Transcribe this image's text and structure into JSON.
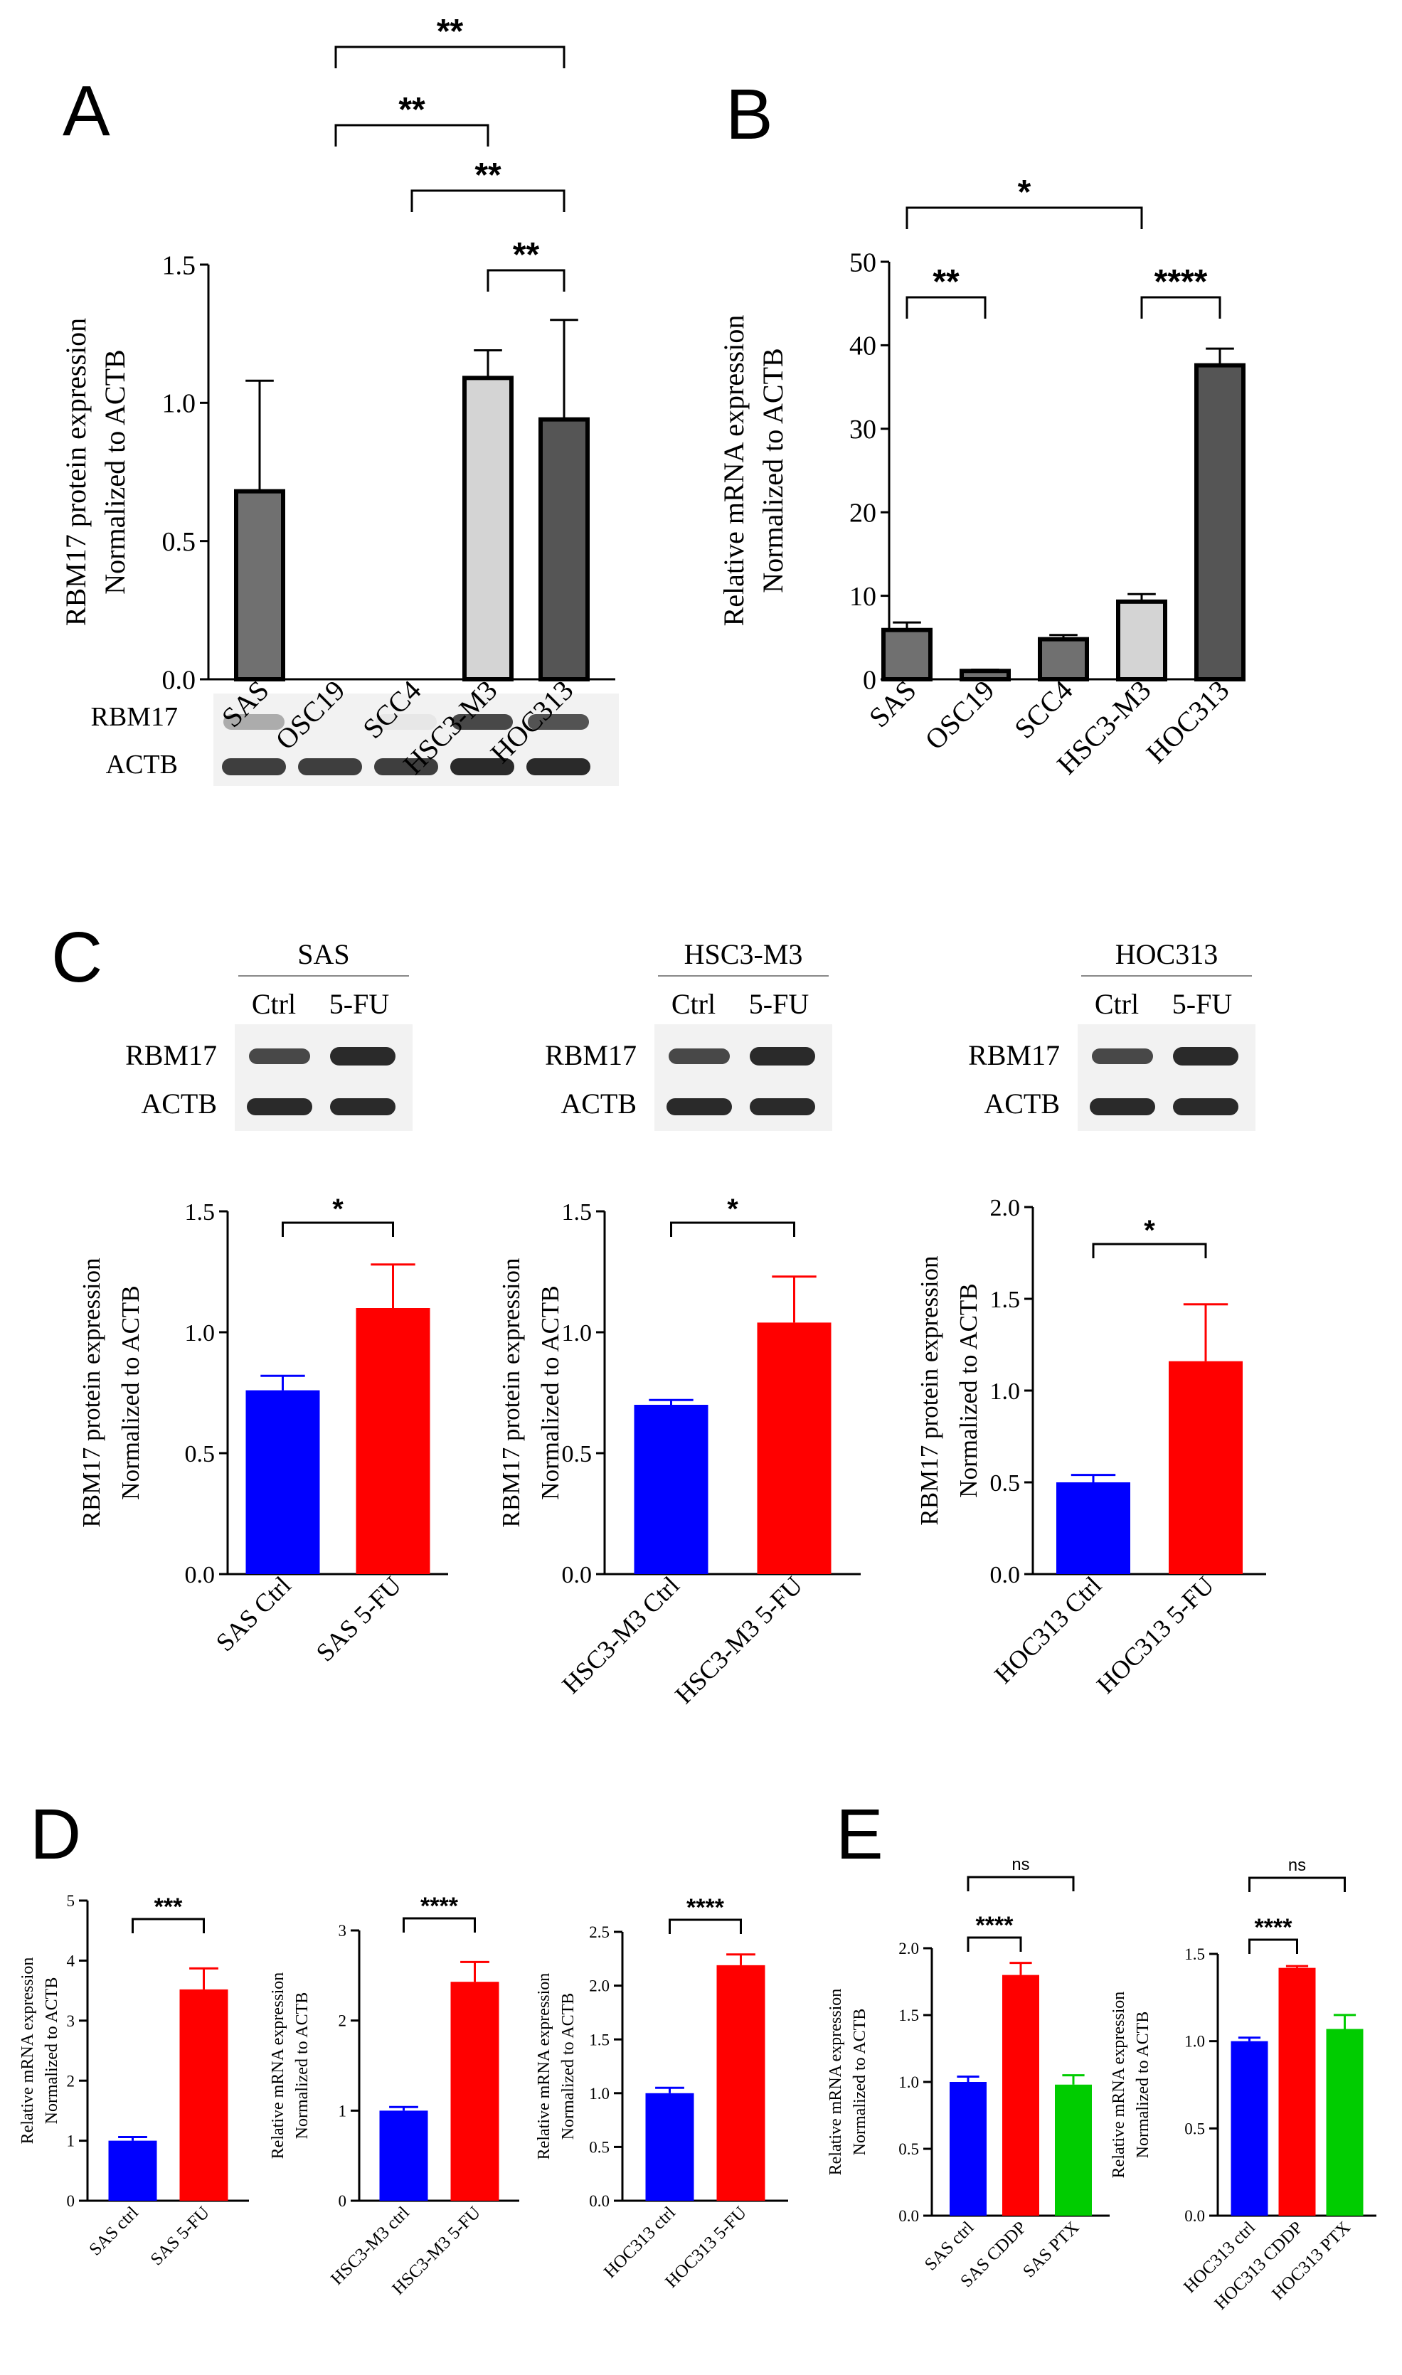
{
  "figure": {
    "panel_letters": [
      "A",
      "B",
      "C",
      "D",
      "E"
    ],
    "colors": {
      "black": "#000000",
      "blue": "#0000ff",
      "red": "#ff0000",
      "green": "#00cc00",
      "grey_mid": "#707070",
      "grey_light": "#d4d4d4",
      "grey_dark": "#555555",
      "blot_bg": "#f2f2f2",
      "band": "#2a2a2a"
    },
    "blots": {
      "A": {
        "rows": [
          "RBM17",
          "ACTB"
        ]
      },
      "C": [
        {
          "title": "SAS",
          "lanes": [
            "Ctrl",
            "5-FU"
          ],
          "rows": [
            "RBM17",
            "ACTB"
          ]
        },
        {
          "title": "HSC3-M3",
          "lanes": [
            "Ctrl",
            "5-FU"
          ],
          "rows": [
            "RBM17",
            "ACTB"
          ]
        },
        {
          "title": "HOC313",
          "lanes": [
            "Ctrl",
            "5-FU"
          ],
          "rows": [
            "RBM17",
            "ACTB"
          ]
        }
      ]
    }
  },
  "chart_data": [
    {
      "panel": "A",
      "type": "bar",
      "categories": [
        "SAS",
        "OSC19",
        "SCC4",
        "HSC3-M3",
        "HOC313"
      ],
      "values": [
        0.68,
        0,
        0,
        1.09,
        0.94
      ],
      "errors": [
        0.4,
        0,
        0,
        0.1,
        0.36
      ],
      "bar_colors": [
        "grey_mid",
        "grey_mid",
        "grey_mid",
        "grey_light",
        "grey_dark"
      ],
      "outlined": true,
      "ylim": [
        0,
        1.5
      ],
      "yticks": [
        "0.0",
        "0.5",
        "1.0",
        "1.5"
      ],
      "ylabel": [
        "RBM17 protein expression",
        "Normalized to ACTB"
      ],
      "significance": [
        {
          "from": 3,
          "to": 4,
          "label": "**"
        },
        {
          "from": 1,
          "to": 3,
          "label": "**"
        },
        {
          "from": 2,
          "to": 4,
          "label": "**"
        },
        {
          "from": 1,
          "to": 4,
          "label": "**"
        }
      ]
    },
    {
      "panel": "B",
      "type": "bar",
      "categories": [
        "SAS",
        "OSC19",
        "SCC4",
        "HSC3-M3",
        "HOC313"
      ],
      "values": [
        5.9,
        1.0,
        4.8,
        9.3,
        37.6
      ],
      "errors": [
        0.9,
        0.15,
        0.5,
        0.9,
        2.0
      ],
      "bar_colors": [
        "grey_mid",
        "grey_mid",
        "grey_mid",
        "grey_light",
        "grey_dark"
      ],
      "outlined": true,
      "ylim": [
        0,
        50
      ],
      "yticks": [
        "0",
        "10",
        "20",
        "30",
        "40",
        "50"
      ],
      "ylabel": [
        "Relative mRNA expression",
        "Normalized to ACTB"
      ],
      "significance": [
        {
          "from": 0,
          "to": 1,
          "label": "**"
        },
        {
          "from": 3,
          "to": 4,
          "label": "****"
        },
        {
          "from": 0,
          "to": 3,
          "label": "*"
        }
      ]
    },
    {
      "panel": "C1",
      "type": "bar",
      "categories": [
        "SAS Ctrl",
        "SAS 5-FU"
      ],
      "values": [
        0.76,
        1.1
      ],
      "errors": [
        0.06,
        0.18
      ],
      "bar_colors": [
        "blue",
        "red"
      ],
      "ylim": [
        0,
        1.5
      ],
      "yticks": [
        "0.0",
        "0.5",
        "1.0",
        "1.5"
      ],
      "ylabel": [
        "RBM17 protein expression",
        "Normalized to ACTB"
      ],
      "significance": [
        {
          "from": 0,
          "to": 1,
          "label": "*"
        }
      ]
    },
    {
      "panel": "C2",
      "type": "bar",
      "categories": [
        "HSC3-M3 Ctrl",
        "HSC3-M3 5-FU"
      ],
      "values": [
        0.7,
        1.04
      ],
      "errors": [
        0.02,
        0.19
      ],
      "bar_colors": [
        "blue",
        "red"
      ],
      "ylim": [
        0,
        1.5
      ],
      "yticks": [
        "0.0",
        "0.5",
        "1.0",
        "1.5"
      ],
      "ylabel": [
        "RBM17 protein expression",
        "Normalized to ACTB"
      ],
      "significance": [
        {
          "from": 0,
          "to": 1,
          "label": "*"
        }
      ]
    },
    {
      "panel": "C3",
      "type": "bar",
      "categories": [
        "HOC313 Ctrl",
        "HOC313 5-FU"
      ],
      "values": [
        0.5,
        1.16
      ],
      "errors": [
        0.04,
        0.31
      ],
      "bar_colors": [
        "blue",
        "red"
      ],
      "ylim": [
        0,
        2.0
      ],
      "yticks": [
        "0.0",
        "0.5",
        "1.0",
        "1.5",
        "2.0"
      ],
      "ylabel": [
        "RBM17 protein expression",
        "Normalized to ACTB"
      ],
      "significance": [
        {
          "from": 0,
          "to": 1,
          "label": "*"
        }
      ]
    },
    {
      "panel": "D1",
      "type": "bar",
      "categories": [
        "SAS ctrl",
        "SAS 5-FU"
      ],
      "values": [
        1.0,
        3.52
      ],
      "errors": [
        0.06,
        0.35
      ],
      "bar_colors": [
        "blue",
        "red"
      ],
      "ylim": [
        0,
        5
      ],
      "yticks": [
        "0",
        "1",
        "2",
        "3",
        "4",
        "5"
      ],
      "ylabel": [
        "Relative mRNA expression",
        "Normalized to ACTB"
      ],
      "significance": [
        {
          "from": 0,
          "to": 1,
          "label": "***"
        }
      ]
    },
    {
      "panel": "D2",
      "type": "bar",
      "categories": [
        "HSC3-M3 ctrl",
        "HSC3-M3 5-FU"
      ],
      "values": [
        1.0,
        2.43
      ],
      "errors": [
        0.04,
        0.22
      ],
      "bar_colors": [
        "blue",
        "red"
      ],
      "ylim": [
        0,
        3
      ],
      "yticks": [
        "0",
        "1",
        "2",
        "3"
      ],
      "ylabel": [
        "Relative mRNA expression",
        "Normalized to ACTB"
      ],
      "significance": [
        {
          "from": 0,
          "to": 1,
          "label": "****"
        }
      ]
    },
    {
      "panel": "D3",
      "type": "bar",
      "categories": [
        "HOC313 ctrl",
        "HOC313 5-FU"
      ],
      "values": [
        1.0,
        2.19
      ],
      "errors": [
        0.05,
        0.1
      ],
      "bar_colors": [
        "blue",
        "red"
      ],
      "ylim": [
        0,
        2.5
      ],
      "yticks": [
        "0.0",
        "0.5",
        "1.0",
        "1.5",
        "2.0",
        "2.5"
      ],
      "ylabel": [
        "Relative mRNA expression",
        "Normalized to ACTB"
      ],
      "significance": [
        {
          "from": 0,
          "to": 1,
          "label": "****"
        }
      ]
    },
    {
      "panel": "E1",
      "type": "bar",
      "categories": [
        "SAS ctrl",
        "SAS CDDP",
        "SAS PTX"
      ],
      "values": [
        1.0,
        1.8,
        0.98
      ],
      "errors": [
        0.04,
        0.09,
        0.07
      ],
      "bar_colors": [
        "blue",
        "red",
        "green"
      ],
      "ylim": [
        0,
        2.0
      ],
      "yticks": [
        "0.0",
        "0.5",
        "1.0",
        "1.5",
        "2.0"
      ],
      "ylabel": [
        "Relative mRNA expression",
        "Normalized to ACTB"
      ],
      "significance": [
        {
          "from": 0,
          "to": 1,
          "label": "****"
        },
        {
          "from": 0,
          "to": 2,
          "label": "ns"
        }
      ]
    },
    {
      "panel": "E2",
      "type": "bar",
      "categories": [
        "HOC313 ctrl",
        "HOC313 CDDP",
        "HOC313 PTX"
      ],
      "values": [
        1.0,
        1.42,
        1.07
      ],
      "errors": [
        0.02,
        0.01,
        0.08
      ],
      "bar_colors": [
        "blue",
        "red",
        "green"
      ],
      "ylim": [
        0,
        1.5
      ],
      "yticks": [
        "0.0",
        "0.5",
        "1.0",
        "1.5"
      ],
      "ylabel": [
        "Relative mRNA expression",
        "Normalized to ACTB"
      ],
      "significance": [
        {
          "from": 0,
          "to": 1,
          "label": "****"
        },
        {
          "from": 0,
          "to": 2,
          "label": "ns"
        }
      ]
    }
  ]
}
